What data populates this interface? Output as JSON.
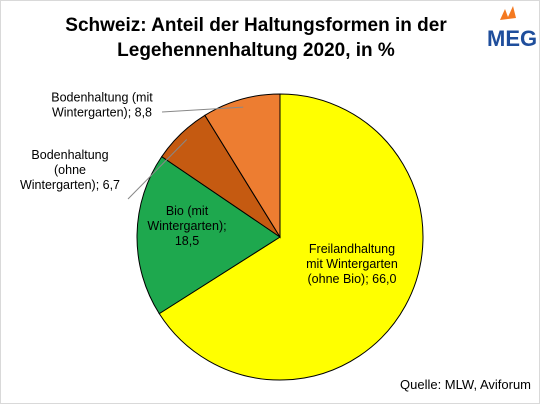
{
  "chart_data": {
    "type": "pie",
    "title_lines": [
      "Schweiz: Anteil der Haltungsformen in der",
      "Legehennenhaltung 2020, in %"
    ],
    "slices": [
      {
        "label_lines": [
          "Freilandhaltung",
          "mit Wintergarten",
          "(ohne Bio); 66,0"
        ],
        "value": 66.0,
        "color": "#ffff00"
      },
      {
        "label_lines": [
          "Bio (mit",
          "Wintergarten);",
          "18,5"
        ],
        "value": 18.5,
        "color": "#1ea84e"
      },
      {
        "label_lines": [
          "Bodenhaltung",
          "(ohne",
          "Wintergarten); 6,7"
        ],
        "value": 6.7,
        "color": "#c55a11"
      },
      {
        "label_lines": [
          "Bodenhaltung (mit",
          "Wintergarten); 8,8"
        ],
        "value": 8.8,
        "color": "#ed7d31"
      }
    ],
    "start_angle": "12 o'clock",
    "direction": "clockwise",
    "source": "Quelle:  MLW, Aviforum"
  },
  "logo": {
    "text": "MEG",
    "color": "#1f4e9c",
    "accent": "#f47920"
  }
}
